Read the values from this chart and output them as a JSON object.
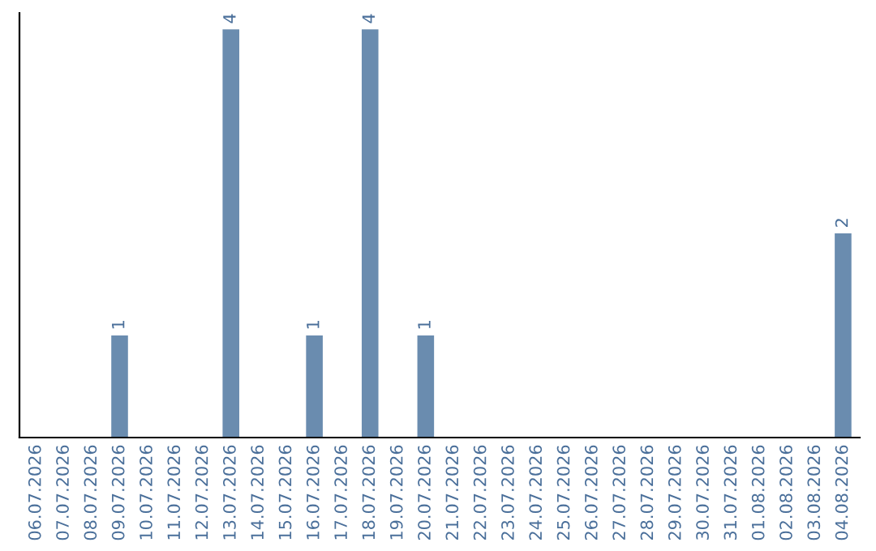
{
  "chart_data": {
    "type": "bar",
    "categories": [
      "06.07.2026",
      "07.07.2026",
      "08.07.2026",
      "09.07.2026",
      "10.07.2026",
      "11.07.2026",
      "12.07.2026",
      "13.07.2026",
      "14.07.2026",
      "15.07.2026",
      "16.07.2026",
      "17.07.2026",
      "18.07.2026",
      "19.07.2026",
      "20.07.2026",
      "21.07.2026",
      "22.07.2026",
      "23.07.2026",
      "24.07.2026",
      "25.07.2026",
      "26.07.2026",
      "27.07.2026",
      "28.07.2026",
      "29.07.2026",
      "30.07.2026",
      "31.07.2026",
      "01.08.2026",
      "02.08.2026",
      "03.08.2026",
      "04.08.2026"
    ],
    "values": [
      null,
      null,
      null,
      1,
      null,
      null,
      null,
      4,
      null,
      null,
      1,
      null,
      4,
      null,
      1,
      null,
      null,
      null,
      null,
      null,
      null,
      null,
      null,
      null,
      null,
      null,
      null,
      null,
      null,
      2
    ],
    "color": "#6a8caf",
    "data_labels": true,
    "grid": false,
    "legend": false
  }
}
